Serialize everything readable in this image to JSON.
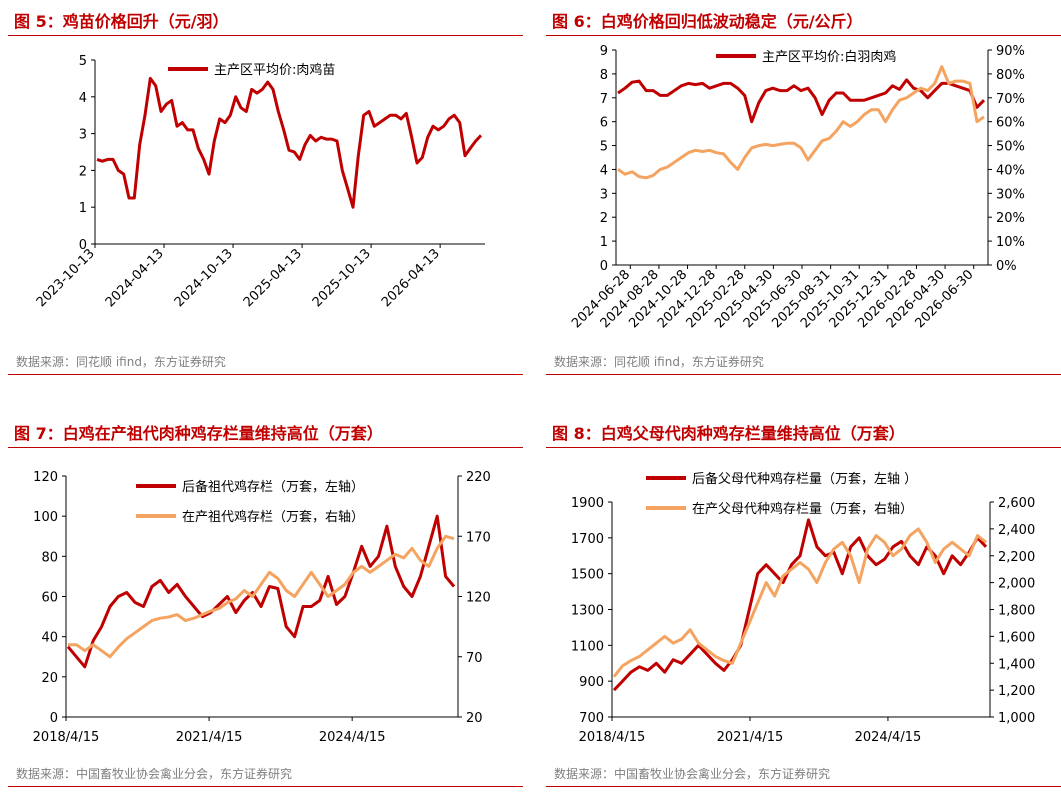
{
  "chart_data": [
    {
      "type": "line",
      "title": "图 5：鸡苗价格回升（元/羽）",
      "source": "数据来源：同花顺 ifind，东方证券研究",
      "yticks": [
        "0",
        "1",
        "2",
        "3",
        "4",
        "5"
      ],
      "ylim": [
        0,
        5
      ],
      "xticks": [
        "2023-10-13",
        "2024-04-13",
        "2024-10-13",
        "2025-04-13",
        "2025-10-13",
        "2026-04-13"
      ],
      "series": [
        {
          "name": "主产区平均价:肉鸡苗",
          "color": "#c00000",
          "axis": "left",
          "values": [
            2.3,
            2.25,
            2.3,
            2.3,
            2.0,
            1.9,
            1.25,
            1.25,
            2.7,
            3.5,
            4.5,
            4.3,
            3.6,
            3.8,
            3.9,
            3.2,
            3.3,
            3.1,
            3.1,
            2.6,
            2.3,
            1.9,
            2.8,
            3.4,
            3.3,
            3.5,
            4.0,
            3.7,
            3.6,
            4.2,
            4.1,
            4.2,
            4.4,
            4.2,
            3.6,
            3.1,
            2.55,
            2.5,
            2.3,
            2.7,
            2.95,
            2.8,
            2.9,
            2.85,
            2.85,
            2.8,
            2.0,
            1.5,
            1.0,
            2.4,
            3.5,
            3.6,
            3.2,
            3.3,
            3.4,
            3.5,
            3.5,
            3.4,
            3.55,
            2.9,
            2.2,
            2.35,
            2.9,
            3.2,
            3.1,
            3.2,
            3.4,
            3.5,
            3.3,
            2.4,
            2.6,
            2.8,
            2.95
          ]
        }
      ]
    },
    {
      "type": "line",
      "title": "图 6：白鸡价格回归低波动稳定（元/公斤）",
      "source": "数据来源：同花顺 ifind，东方证券研究",
      "yticks": [
        "0",
        "1",
        "2",
        "3",
        "4",
        "5",
        "6",
        "7",
        "8",
        "9"
      ],
      "ylim": [
        0,
        9
      ],
      "y2ticks": [
        "0%",
        "10%",
        "20%",
        "30%",
        "40%",
        "50%",
        "60%",
        "70%",
        "80%",
        "90%"
      ],
      "y2lim": [
        0,
        90
      ],
      "xticks": [
        "2024-06-28",
        "2024-08-28",
        "2024-10-28",
        "2024-12-28",
        "2025-02-28",
        "2025-04-30",
        "2025-06-30",
        "2025-08-31",
        "2025-10-31",
        "2025-12-31",
        "2026-02-28",
        "2026-04-30",
        "2026-06-30"
      ],
      "series": [
        {
          "name": "主产区平均价:白羽肉鸡",
          "color": "#c00000",
          "axis": "left",
          "values": [
            7.2,
            7.4,
            7.65,
            7.7,
            7.3,
            7.3,
            7.1,
            7.1,
            7.3,
            7.5,
            7.6,
            7.55,
            7.6,
            7.4,
            7.5,
            7.6,
            7.6,
            7.4,
            7.1,
            6.0,
            6.8,
            7.3,
            7.4,
            7.3,
            7.3,
            7.5,
            7.3,
            7.4,
            7.0,
            6.3,
            6.9,
            7.2,
            7.2,
            6.9,
            6.9,
            6.9,
            7.0,
            7.1,
            7.2,
            7.5,
            7.35,
            7.75,
            7.4,
            7.3,
            7.0,
            7.3,
            7.6,
            7.6,
            7.5,
            7.4,
            7.3,
            6.6,
            6.9
          ]
        },
        {
          "name": "",
          "color": "#f4a460",
          "axis": "right",
          "values": [
            40,
            38,
            39,
            37,
            36.5,
            37.5,
            40,
            41,
            43,
            45,
            47,
            48,
            47.5,
            48,
            47,
            46.5,
            43,
            40,
            45,
            49,
            50,
            50.5,
            50,
            50.5,
            51,
            51,
            49,
            44,
            48,
            52,
            53,
            56,
            60,
            58,
            60,
            63,
            65,
            65,
            60,
            65,
            69,
            70,
            72,
            74,
            73,
            76,
            83,
            76,
            77,
            77,
            76,
            60,
            62
          ]
        }
      ]
    },
    {
      "type": "line",
      "title": "图 7：白鸡在产祖代肉种鸡存栏量维持高位（万套）",
      "source": "数据来源：中国畜牧业协会禽业分会，东方证券研究",
      "yticks": [
        "0",
        "20",
        "40",
        "60",
        "80",
        "100",
        "120"
      ],
      "ylim": [
        0,
        120
      ],
      "y2ticks": [
        "20",
        "70",
        "120",
        "170",
        "220"
      ],
      "y2lim": [
        20,
        220
      ],
      "xticks": [
        "2018/4/15",
        "2021/4/15",
        "2024/4/15"
      ],
      "series": [
        {
          "name": "后备祖代鸡存栏（万套，左轴）",
          "color": "#c00000",
          "axis": "left",
          "values": [
            35,
            30,
            25,
            38,
            45,
            55,
            60,
            62,
            57,
            55,
            65,
            68,
            62,
            66,
            60,
            55,
            50,
            52,
            56,
            60,
            52,
            58,
            62,
            55,
            65,
            64,
            45,
            40,
            55,
            55,
            58,
            70,
            56,
            60,
            72,
            85,
            75,
            80,
            95,
            75,
            65,
            60,
            70,
            85,
            100,
            70,
            65
          ]
        },
        {
          "name": "在产祖代鸡存栏（万套，右轴）",
          "color": "#f4a460",
          "axis": "right",
          "values": [
            80,
            80,
            75,
            80,
            75,
            70,
            78,
            85,
            90,
            95,
            100,
            102,
            103,
            105,
            100,
            102,
            105,
            108,
            110,
            115,
            118,
            125,
            120,
            130,
            140,
            135,
            125,
            120,
            130,
            140,
            130,
            120,
            125,
            130,
            140,
            145,
            140,
            145,
            150,
            155,
            152,
            160,
            150,
            145,
            160,
            170,
            168
          ]
        }
      ]
    },
    {
      "type": "line",
      "title": "图 8：白鸡父母代肉种鸡存栏量维持高位（万套）",
      "source": "数据来源：中国畜牧业协会禽业分会，东方证券研究",
      "yticks": [
        "700",
        "900",
        "1100",
        "1300",
        "1500",
        "1700",
        "1900"
      ],
      "ylim": [
        700,
        1900
      ],
      "y2ticks": [
        "1,000",
        "1,200",
        "1,400",
        "1,600",
        "1,800",
        "2,000",
        "2,200",
        "2,400",
        "2,600"
      ],
      "y2lim": [
        1000,
        2600
      ],
      "xticks": [
        "2018/4/15",
        "2021/4/15",
        "2024/4/15"
      ],
      "series": [
        {
          "name": "后备父母代种鸡存栏量（万套，左轴 ）",
          "color": "#c00000",
          "axis": "left",
          "values": [
            850,
            900,
            950,
            980,
            960,
            1000,
            950,
            1020,
            1000,
            1050,
            1100,
            1050,
            1000,
            960,
            1020,
            1100,
            1300,
            1500,
            1550,
            1500,
            1450,
            1550,
            1600,
            1800,
            1650,
            1600,
            1620,
            1500,
            1650,
            1700,
            1600,
            1550,
            1580,
            1650,
            1680,
            1600,
            1550,
            1650,
            1600,
            1500,
            1600,
            1550,
            1620,
            1700,
            1650
          ]
        },
        {
          "name": "在产父母代种鸡存栏量（万套，右轴）",
          "color": "#f4a460",
          "axis": "right",
          "values": [
            1300,
            1380,
            1420,
            1450,
            1500,
            1550,
            1600,
            1550,
            1580,
            1650,
            1550,
            1500,
            1450,
            1420,
            1400,
            1550,
            1700,
            1850,
            2000,
            1900,
            2050,
            2100,
            2150,
            2100,
            2000,
            2150,
            2250,
            2300,
            2200,
            2000,
            2250,
            2350,
            2300,
            2200,
            2250,
            2350,
            2400,
            2300,
            2150,
            2250,
            2300,
            2250,
            2200,
            2350,
            2300
          ]
        }
      ]
    }
  ]
}
